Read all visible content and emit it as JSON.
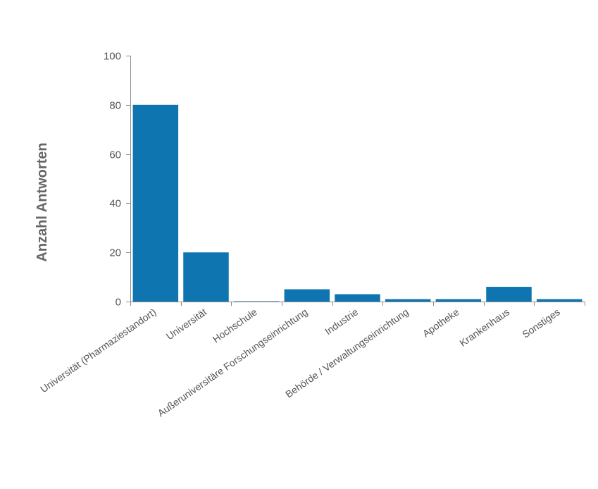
{
  "chart_data": {
    "type": "bar",
    "title": "",
    "xlabel": "",
    "ylabel": "Anzahl Antworten",
    "categories": [
      "Universität (Pharmaziestandort)",
      "Universität",
      "Hochschule",
      "Außeruniversitäre Forschungseinrichtung",
      "Industrie",
      "Behörde / Verwaltungseinrichtung",
      "Apotheke",
      "Krankenhaus",
      "Sonstiges"
    ],
    "values": [
      80,
      20,
      0,
      5,
      3,
      1,
      1,
      6,
      1
    ],
    "ylim": [
      0,
      100
    ],
    "yticks": [
      0,
      20,
      40,
      60,
      80,
      100
    ],
    "grid": false,
    "legend": "none",
    "bar_color": "#0f75b1",
    "axis_color": "#8c8c8c"
  }
}
